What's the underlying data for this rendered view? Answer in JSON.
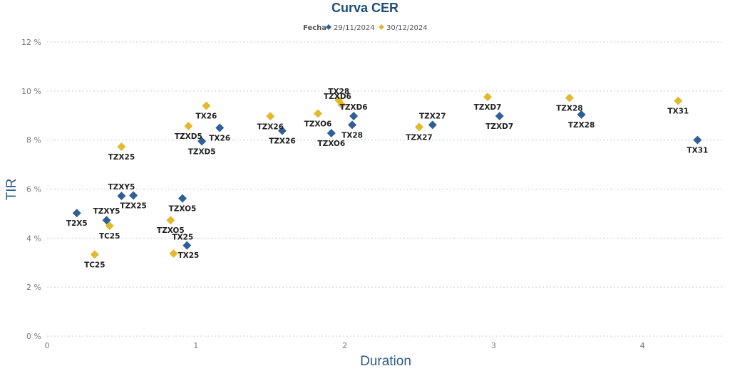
{
  "chart_data": {
    "type": "scatter",
    "title": "Curva CER",
    "legend_title": "Fecha",
    "legend_position": "top-center",
    "xlabel": "Duration",
    "ylabel": "TIR",
    "xlim": [
      0,
      4.55
    ],
    "ylim": [
      0,
      12
    ],
    "x_ticks": [
      0,
      1,
      2,
      3,
      4
    ],
    "x_tick_labels": [
      "0",
      "1",
      "2",
      "3",
      "4"
    ],
    "y_ticks": [
      0,
      2,
      4,
      6,
      8,
      10,
      12
    ],
    "y_tick_labels": [
      "0 %",
      "2 %",
      "4 %",
      "6 %",
      "8 %",
      "10 %",
      "12 %"
    ],
    "grid": "horizontal dotted",
    "series": [
      {
        "name": "29/11/2024",
        "color": "#2f5f96",
        "marker": "diamond",
        "points": [
          {
            "label": "T2X5",
            "x": 0.2,
            "y": 5.02,
            "label_pos": "below"
          },
          {
            "label": "TZXY5",
            "x": 0.4,
            "y": 4.73,
            "label_pos": "above"
          },
          {
            "label": "TZXY5",
            "x": 0.5,
            "y": 5.72,
            "label_pos": "above"
          },
          {
            "label": "TZX25",
            "x": 0.58,
            "y": 5.74,
            "label_pos": "below"
          },
          {
            "label": "TZXO5",
            "x": 0.91,
            "y": 5.62,
            "label_pos": "below"
          },
          {
            "label": "TX25",
            "x": 0.94,
            "y": 3.7,
            "label_pos": "above-left"
          },
          {
            "label": "TZXD5",
            "x": 1.04,
            "y": 7.95,
            "label_pos": "below"
          },
          {
            "label": "TX26",
            "x": 1.16,
            "y": 8.5,
            "label_pos": "below"
          },
          {
            "label": "TZX26",
            "x": 1.58,
            "y": 8.38,
            "label_pos": "below"
          },
          {
            "label": "TZXO6",
            "x": 1.91,
            "y": 8.28,
            "label_pos": "below"
          },
          {
            "label": "TX28",
            "x": 2.05,
            "y": 8.62,
            "label_pos": "below"
          },
          {
            "label": "TZXD6",
            "x": 2.06,
            "y": 8.98,
            "label_pos": "above"
          },
          {
            "label": "TZX27",
            "x": 2.59,
            "y": 8.62,
            "label_pos": "above"
          },
          {
            "label": "TZXD7",
            "x": 3.04,
            "y": 8.98,
            "label_pos": "below"
          },
          {
            "label": "TZX28",
            "x": 3.59,
            "y": 9.04,
            "label_pos": "below"
          },
          {
            "label": "TX31",
            "x": 4.37,
            "y": 8.0,
            "label_pos": "below"
          }
        ]
      },
      {
        "name": "30/12/2024",
        "color": "#e0b92d",
        "marker": "diamond",
        "points": [
          {
            "label": "TC25",
            "x": 0.32,
            "y": 3.33,
            "label_pos": "below"
          },
          {
            "label": "TC25",
            "x": 0.42,
            "y": 4.5,
            "label_pos": "below"
          },
          {
            "label": "TZX25",
            "x": 0.5,
            "y": 7.73,
            "label_pos": "below"
          },
          {
            "label": "TZXO5",
            "x": 0.83,
            "y": 4.73,
            "label_pos": "below"
          },
          {
            "label": "TX25",
            "x": 0.85,
            "y": 3.37,
            "label_pos": "right"
          },
          {
            "label": "TZXD5",
            "x": 0.95,
            "y": 8.57,
            "label_pos": "below"
          },
          {
            "label": "TX26",
            "x": 1.07,
            "y": 9.4,
            "label_pos": "below"
          },
          {
            "label": "TZX26",
            "x": 1.5,
            "y": 8.97,
            "label_pos": "below"
          },
          {
            "label": "TZXO6",
            "x": 1.82,
            "y": 9.08,
            "label_pos": "below"
          },
          {
            "label": "TZXD6",
            "x": 1.98,
            "y": 9.44,
            "label_pos": "above-left"
          },
          {
            "label": "TX28",
            "x": 1.96,
            "y": 9.62,
            "label_pos": "above"
          },
          {
            "label": "TZX27",
            "x": 2.5,
            "y": 8.53,
            "label_pos": "below"
          },
          {
            "label": "TZXD7",
            "x": 2.96,
            "y": 9.76,
            "label_pos": "below"
          },
          {
            "label": "TZX28",
            "x": 3.51,
            "y": 9.72,
            "label_pos": "below"
          },
          {
            "label": "TX31",
            "x": 4.24,
            "y": 9.6,
            "label_pos": "below"
          }
        ]
      }
    ]
  }
}
